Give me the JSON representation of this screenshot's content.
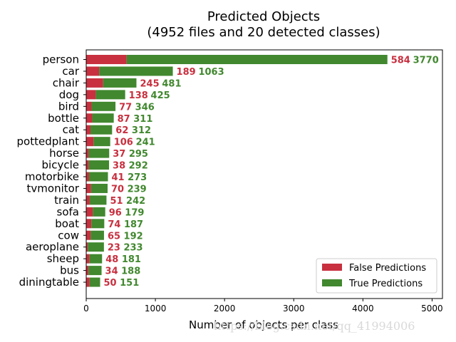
{
  "chart_data": {
    "type": "bar",
    "orientation": "horizontal",
    "stacked": true,
    "title": "Predicted Objects",
    "subtitle": "(4952 files and 20 detected classes)",
    "xlabel": "Number of objects per class",
    "ylabel": "",
    "xlim": [
      0,
      5150
    ],
    "xticks": [
      0,
      1000,
      2000,
      3000,
      4000,
      5000
    ],
    "grid": false,
    "legend_position": "lower-right",
    "categories": [
      "person",
      "car",
      "chair",
      "dog",
      "bird",
      "bottle",
      "cat",
      "pottedplant",
      "horse",
      "bicycle",
      "motorbike",
      "tvmonitor",
      "train",
      "sofa",
      "boat",
      "cow",
      "aeroplane",
      "sheep",
      "bus",
      "diningtable"
    ],
    "series": [
      {
        "name": "False Predictions",
        "color": "#c8303f",
        "values": [
          584,
          189,
          245,
          138,
          77,
          87,
          62,
          106,
          37,
          38,
          41,
          70,
          51,
          96,
          74,
          65,
          23,
          48,
          34,
          50
        ]
      },
      {
        "name": "True Predictions",
        "color": "#41882f",
        "values": [
          3770,
          1063,
          481,
          425,
          346,
          311,
          312,
          241,
          295,
          292,
          273,
          239,
          242,
          179,
          187,
          192,
          233,
          181,
          188,
          151
        ]
      }
    ]
  },
  "watermark": "https://blog.csdn.net/qq_41994006"
}
